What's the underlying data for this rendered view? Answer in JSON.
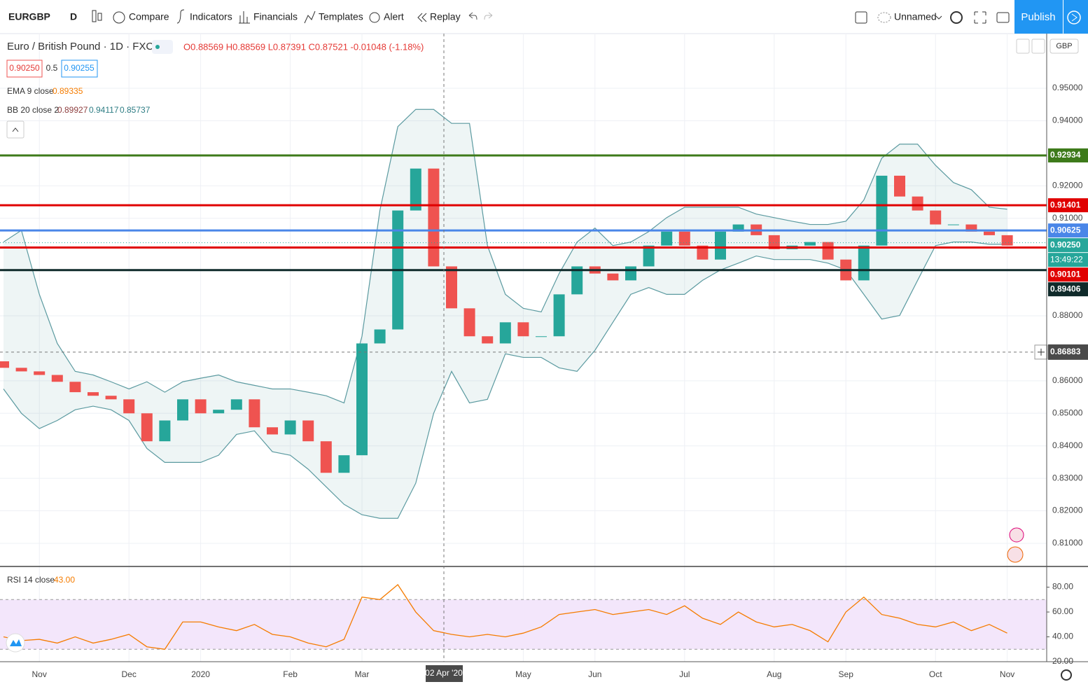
{
  "toolbar": {
    "symbol": "EURGBP",
    "interval": "D",
    "buttons": [
      "Compare",
      "Indicators",
      "Financials",
      "Templates",
      "Alert",
      "Replay"
    ],
    "layout": "Unnamed",
    "publish": "Publish"
  },
  "legend": {
    "title": "Euro / British Pound · 1D · FXCM",
    "ohlc": "O0.88569 H0.88569 L0.87391 C0.87521 -0.01048 (-1.18%)",
    "bid": "0.90250",
    "spread": "0.5",
    "ask": "0.90255",
    "ema_label": "EMA 9 close",
    "ema_value": "0.89335",
    "bb_label": "BB 20 close 2",
    "bb_values": [
      "0.89927",
      "0.94117",
      "0.85737"
    ],
    "currency": "GBP"
  },
  "chart_data": [
    {
      "type": "candlestick",
      "categories": [
        null,
        null,
        "Nov",
        null,
        null,
        null,
        null,
        "Dec",
        null,
        null,
        null,
        "2020",
        null,
        null,
        null,
        null,
        "Feb",
        null,
        null,
        null,
        "Mar",
        null,
        null,
        null,
        null,
        null,
        null,
        null,
        null,
        "May",
        null,
        null,
        null,
        "Jun",
        null,
        null,
        null,
        null,
        "Jul",
        null,
        null,
        null,
        null,
        "Aug",
        null,
        null,
        null,
        "Sep",
        null,
        null,
        null,
        null,
        "Oct",
        null,
        null,
        null,
        "Nov"
      ],
      "open": [
        0.866,
        0.864,
        0.8629,
        0.8618,
        0.8597,
        0.8565,
        0.8554,
        0.8543,
        0.85,
        0.8414,
        0.8478,
        0.8543,
        0.85,
        0.8511,
        0.8543,
        0.8457,
        0.8435,
        0.8478,
        0.8414,
        0.8317,
        0.8371,
        0.8715,
        0.8758,
        0.9124,
        0.9253,
        0.8952,
        0.8823,
        0.8737,
        0.8715,
        0.878,
        0.8737,
        0.8737,
        0.8866,
        0.8952,
        0.893,
        0.8909,
        0.8952,
        0.9016,
        0.9059,
        0.9016,
        0.8973,
        0.9059,
        0.9081,
        0.9048,
        0.9005,
        0.9016,
        0.9027,
        0.8973,
        0.8909,
        0.9016,
        0.9231,
        0.9167,
        0.9124,
        0.9081,
        0.9081,
        0.9059,
        0.9048
      ],
      "close": [
        0.864,
        0.8629,
        0.8618,
        0.8597,
        0.8565,
        0.8554,
        0.8543,
        0.85,
        0.8414,
        0.8478,
        0.8543,
        0.85,
        0.8511,
        0.8543,
        0.8457,
        0.8435,
        0.8478,
        0.8414,
        0.8317,
        0.8371,
        0.8715,
        0.8758,
        0.9124,
        0.9253,
        0.8952,
        0.8823,
        0.8737,
        0.8715,
        0.878,
        0.8737,
        0.8737,
        0.8866,
        0.8952,
        0.893,
        0.8909,
        0.8952,
        0.9016,
        0.9059,
        0.9016,
        0.8973,
        0.9059,
        0.9081,
        0.9048,
        0.9005,
        0.9016,
        0.9027,
        0.8973,
        0.8909,
        0.9016,
        0.9231,
        0.9167,
        0.9124,
        0.9081,
        0.9081,
        0.9059,
        0.9048,
        0.9016
      ],
      "upper": [
        0.9027,
        0.9063,
        0.8866,
        0.8715,
        0.8629,
        0.8618,
        0.8597,
        0.8575,
        0.8597,
        0.8565,
        0.8597,
        0.8608,
        0.8618,
        0.8597,
        0.8586,
        0.8575,
        0.8575,
        0.8565,
        0.8554,
        0.8532,
        0.8737,
        0.9124,
        0.9382,
        0.9435,
        0.9435,
        0.9392,
        0.9392,
        0.9016,
        0.8866,
        0.8823,
        0.8812,
        0.893,
        0.9027,
        0.907,
        0.9016,
        0.9027,
        0.9059,
        0.9102,
        0.9134,
        0.9134,
        0.9134,
        0.9134,
        0.9113,
        0.9102,
        0.9091,
        0.9081,
        0.9081,
        0.9091,
        0.9156,
        0.9285,
        0.9328,
        0.9328,
        0.9263,
        0.921,
        0.9188,
        0.9134,
        0.9128
      ],
      "lower": [
        0.8575,
        0.85,
        0.8453,
        0.8478,
        0.8511,
        0.8522,
        0.8511,
        0.8478,
        0.8392,
        0.8349,
        0.8349,
        0.8349,
        0.8371,
        0.8435,
        0.8446,
        0.8382,
        0.8371,
        0.8328,
        0.8274,
        0.822,
        0.8188,
        0.8177,
        0.8177,
        0.8285,
        0.85,
        0.8629,
        0.8532,
        0.8543,
        0.8683,
        0.8672,
        0.8672,
        0.864,
        0.8629,
        0.8694,
        0.878,
        0.8866,
        0.8887,
        0.8866,
        0.8866,
        0.8909,
        0.8941,
        0.8962,
        0.8984,
        0.8973,
        0.8973,
        0.8973,
        0.8962,
        0.8941,
        0.8866,
        0.879,
        0.8801,
        0.8909,
        0.9016,
        0.9027,
        0.9027,
        0.902,
        0.902
      ],
      "up_color": "#26a69a",
      "down_color": "#ef5350",
      "band_color": "#5b9aa0",
      "ylim": [
        0.8031,
        0.9666
      ],
      "yticks": [
        {
          "value": 0.81,
          "label": "0.81000"
        },
        {
          "value": 0.82,
          "label": "0.82000"
        },
        {
          "value": 0.83,
          "label": "0.83000"
        },
        {
          "value": 0.84,
          "label": "0.84000"
        },
        {
          "value": 0.85,
          "label": "0.85000"
        },
        {
          "value": 0.86,
          "label": "0.86000"
        },
        {
          "value": 0.88,
          "label": "0.88000"
        },
        {
          "value": 0.91,
          "label": "0.91000"
        },
        {
          "value": 0.92,
          "label": "0.92000"
        },
        {
          "value": 0.94,
          "label": "0.94000"
        },
        {
          "value": 0.95,
          "label": "0.95000"
        }
      ],
      "grid": true,
      "levels": [
        {
          "value": 0.92934,
          "color": "#3d7a1a"
        },
        {
          "value": 0.91401,
          "color": "#e00000"
        },
        {
          "value": 0.90625,
          "color": "#4a86e8"
        },
        {
          "value": 0.90101,
          "color": "#e00000"
        },
        {
          "value": 0.89406,
          "color": "#0f2a2a"
        }
      ],
      "last_price": {
        "value": 0.9025,
        "label": "0.90250"
      },
      "countdown": "13:49:22",
      "crosshair": {
        "price": 0.86883,
        "date": "02 Apr '20"
      }
    },
    {
      "type": "line",
      "title": "RSI 14 close",
      "readout": "43.00",
      "color": "#f57c00",
      "values": [
        40,
        37,
        38,
        35,
        40,
        35,
        38,
        42,
        32,
        30,
        52,
        52,
        48,
        45,
        50,
        42,
        40,
        35,
        32,
        38,
        72,
        70,
        82,
        60,
        45,
        42,
        40,
        42,
        40,
        43,
        48,
        58,
        60,
        62,
        58,
        60,
        62,
        58,
        65,
        55,
        50,
        60,
        52,
        48,
        50,
        45,
        36,
        60,
        72,
        58,
        55,
        50,
        48,
        52,
        45,
        50,
        43
      ],
      "ylim": [
        20,
        96.1
      ],
      "yticks": [
        {
          "value": 20,
          "label": "20.00"
        },
        {
          "value": 40,
          "label": "40.00"
        },
        {
          "value": 60,
          "label": "60.00"
        },
        {
          "value": 80,
          "label": "80.00"
        }
      ],
      "bands": [
        30,
        70
      ]
    }
  ]
}
